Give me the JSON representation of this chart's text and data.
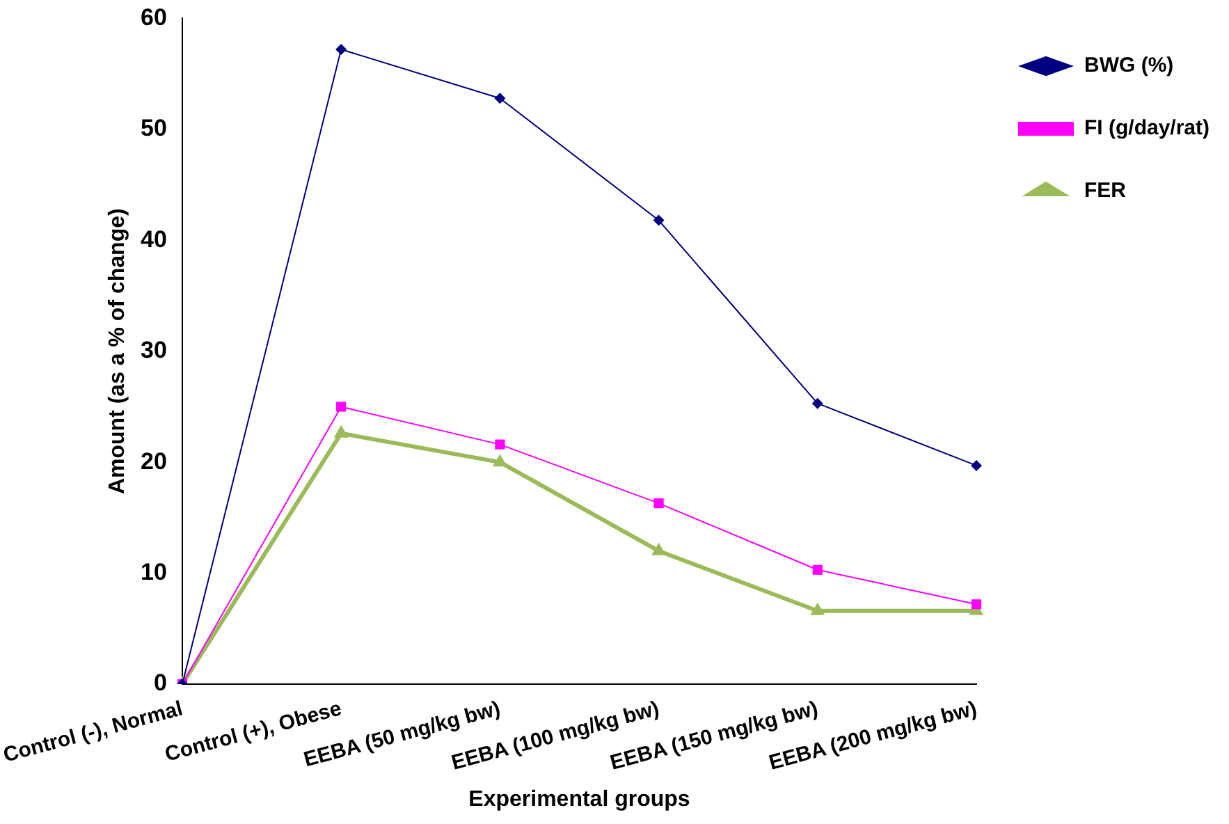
{
  "chart_data": {
    "type": "line",
    "xlabel": "Experimental groups",
    "ylabel": "Amount (as a % of change)",
    "categories": [
      "Control (-), Normal",
      "Control (+), Obese",
      "EEBA (50 mg/kg bw)",
      "EEBA (100 mg/kg bw)",
      "EEBA (150 mg/kg bw)",
      "EEBA (200 mg/kg bw)"
    ],
    "series": [
      {
        "name": "BWG (%)",
        "color": "#000080",
        "marker": "diamond",
        "values": [
          0,
          57.2,
          52.8,
          41.8,
          25.3,
          19.7
        ]
      },
      {
        "name": "FI (g/day/rat)",
        "color": "#ff00ff",
        "marker": "square",
        "values": [
          0,
          25.0,
          21.6,
          16.3,
          10.3,
          7.2
        ]
      },
      {
        "name": "FER",
        "color": "#9bbb59",
        "marker": "triangle",
        "values": [
          0,
          22.6,
          20.0,
          12.0,
          6.6,
          6.6
        ]
      }
    ],
    "ylim": [
      0,
      60
    ],
    "yticks": [
      0,
      10,
      20,
      30,
      40,
      50,
      60
    ],
    "grid": false,
    "legend": "top right",
    "line_style": "solid"
  }
}
